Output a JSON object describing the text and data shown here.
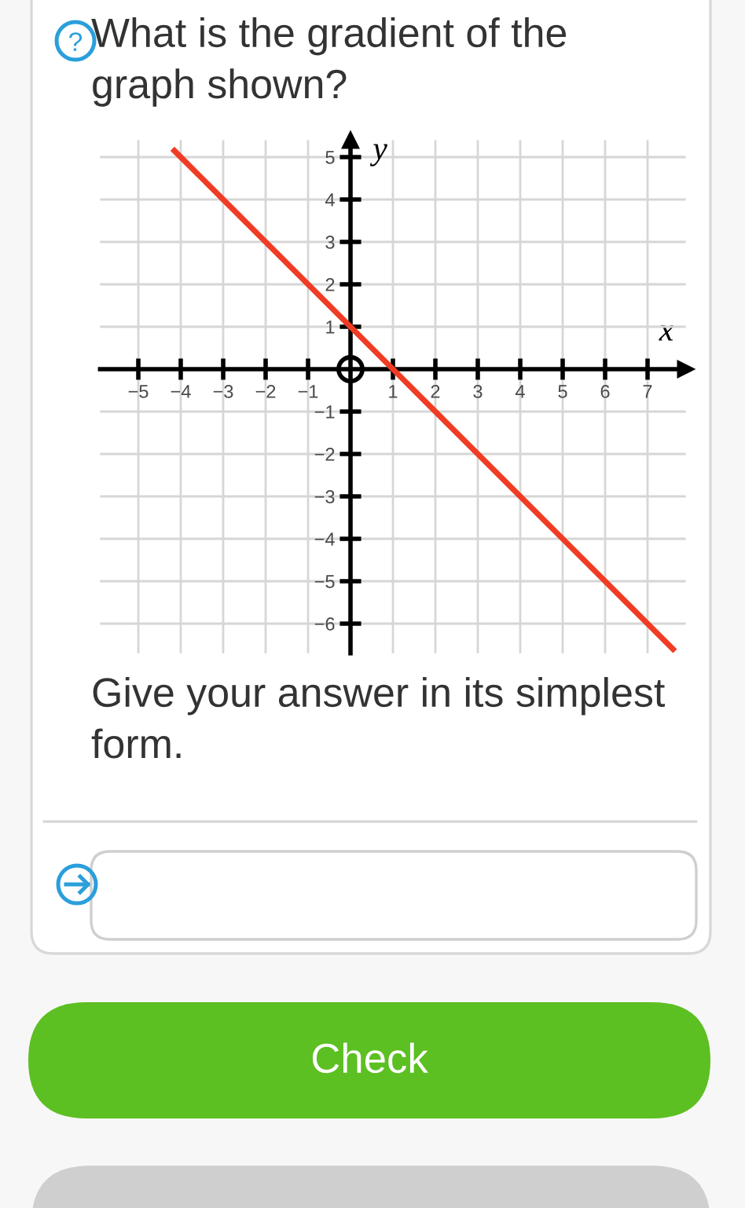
{
  "chart_data": {
    "type": "line",
    "title": "What is the gradient of the graph shown?",
    "xlabel": "x",
    "ylabel": "y",
    "x": [
      -4.15,
      7.6
    ],
    "series": [
      {
        "color": "#f03c24",
        "values": [
          5.15,
          -6.6
        ]
      }
    ],
    "xlim": [
      -5.9,
      7.9
    ],
    "ylim": [
      -6.7,
      5.4
    ],
    "xticks": [
      {
        "value": -5,
        "label": "−5"
      },
      {
        "value": -4,
        "label": "−4"
      },
      {
        "value": -3,
        "label": "−3"
      },
      {
        "value": -2,
        "label": "−2"
      },
      {
        "value": -1,
        "label": "−1"
      },
      1,
      2,
      3,
      4,
      5,
      6,
      7
    ],
    "yticks": [
      {
        "value": -6,
        "label": "−6"
      },
      {
        "value": -5,
        "label": "−5"
      },
      {
        "value": -4,
        "label": "−4"
      },
      {
        "value": -3,
        "label": "−3"
      },
      {
        "value": -2,
        "label": "−2"
      },
      {
        "value": -1,
        "label": "−1"
      },
      1,
      2,
      3,
      4,
      5
    ],
    "grid": true,
    "marker": "none",
    "line_style": "solid",
    "annotations": [
      "Give your answer in its simplest form.",
      "Check"
    ]
  }
}
